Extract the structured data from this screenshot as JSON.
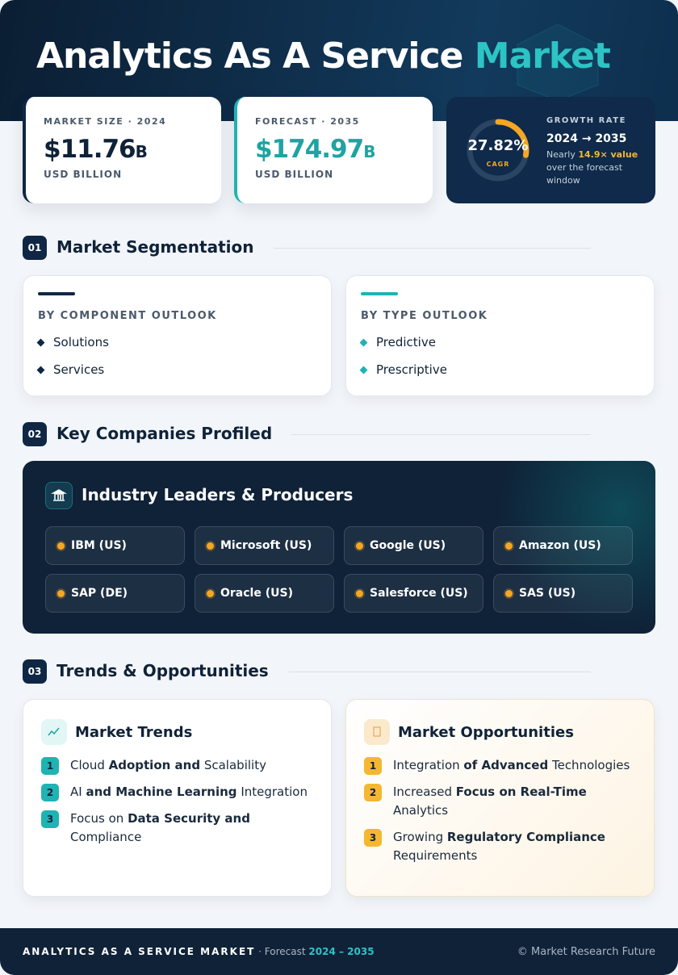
{
  "header": {
    "title_main": "Analytics As A Service",
    "title_accent": "Market"
  },
  "stats": [
    {
      "label": "MARKET SIZE · 2024",
      "value": "$11.76",
      "unit": "B",
      "sub": "USD BILLION"
    },
    {
      "label": "FORECAST · 2035",
      "value": "$174.97",
      "unit": "B",
      "sub": "USD BILLION"
    }
  ],
  "growth": {
    "cagr": {
      "value": 27.82,
      "label": "27.82%"
    },
    "cagr_caption": "CAGR",
    "label": "GROWTH RATE",
    "period": "2024 → 2035",
    "note": [
      {
        "text": "Nearly "
      },
      {
        "text": "14.9× value",
        "highlight": true
      },
      {
        "text": " over the forecast window"
      }
    ]
  },
  "segmentation": {
    "number": "01",
    "title": "Market Segmentation",
    "cards": [
      {
        "title": "BY COMPONENT OUTLOOK",
        "items": [
          "Solutions",
          "Services"
        ]
      },
      {
        "title": "BY TYPE OUTLOOK",
        "items": [
          "Predictive",
          "Prescriptive"
        ]
      }
    ]
  },
  "companies": {
    "number": "02",
    "title": "Key Companies Profiled",
    "panel_title": "Industry Leaders & Producers",
    "items": [
      "IBM (US)",
      "Microsoft (US)",
      "Google (US)",
      "Amazon (US)",
      "SAP (DE)",
      "Oracle (US)",
      "Salesforce (US)",
      "SAS (US)"
    ]
  },
  "trends": {
    "number": "03",
    "title": "Trends & Opportunities",
    "cards": [
      {
        "title": "Market Trends",
        "items": [
          {
            "number": "1",
            "parts": [
              {
                "text": "Cloud "
              },
              {
                "text": "Adoption and",
                "bold": true
              },
              {
                "text": " Scalability"
              }
            ]
          },
          {
            "number": "2",
            "parts": [
              {
                "text": "AI "
              },
              {
                "text": "and Machine Learning",
                "bold": true
              },
              {
                "text": " Integration"
              }
            ]
          },
          {
            "number": "3",
            "parts": [
              {
                "text": "Focus on "
              },
              {
                "text": "Data Security and",
                "bold": true
              },
              {
                "text": " Compliance"
              }
            ]
          }
        ]
      },
      {
        "title": "Market Opportunities",
        "items": [
          {
            "number": "1",
            "parts": [
              {
                "text": "Integration "
              },
              {
                "text": "of Advanced",
                "bold": true
              },
              {
                "text": " Technologies"
              }
            ]
          },
          {
            "number": "2",
            "parts": [
              {
                "text": "Increased "
              },
              {
                "text": "Focus on Real-Time",
                "bold": true
              },
              {
                "text": " Analytics"
              }
            ]
          },
          {
            "number": "3",
            "parts": [
              {
                "text": "Growing "
              },
              {
                "text": "Regulatory Compliance",
                "bold": true
              },
              {
                "text": " Requirements"
              }
            ]
          }
        ]
      }
    ]
  },
  "footer": {
    "title": "ANALYTICS AS A SERVICE MARKET",
    "forecast_label": "· Forecast",
    "period": "2024 – 2035",
    "copyright": "© Market Research Future"
  }
}
